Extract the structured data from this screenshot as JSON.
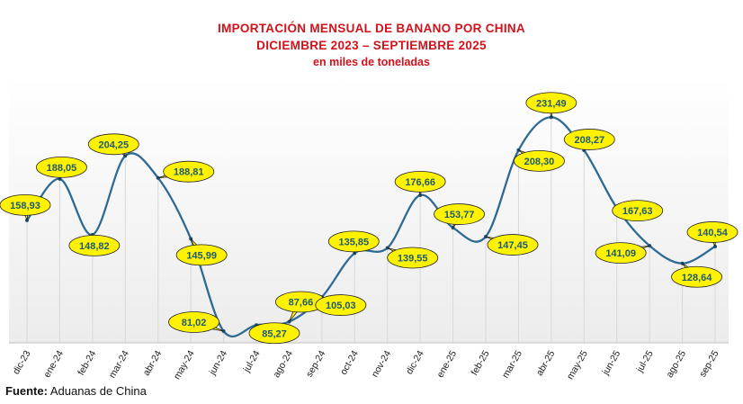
{
  "chart_data": {
    "type": "line",
    "title": "IMPORTACIÓN MENSUAL DE BANANO POR CHINA",
    "subtitle": "DICIEMBRE 2023 – SEPTIEMBRE 2025",
    "unit_note": "en miles de toneladas",
    "categories": [
      "dic-23",
      "ene-24",
      "feb-24",
      "mar-24",
      "abr-24",
      "may-24",
      "jun-24",
      "jul-24",
      "ago-24",
      "sep-24",
      "oct-24",
      "nov-24",
      "dic-24",
      "ene-25",
      "feb-25",
      "mar-25",
      "abr-25",
      "may-25",
      "jun-25",
      "jul-25",
      "ago-25",
      "sep-25"
    ],
    "values": [
      158.93,
      188.05,
      148.82,
      204.25,
      188.81,
      145.99,
      81.02,
      85.27,
      87.66,
      105.03,
      135.85,
      139.55,
      176.66,
      153.77,
      147.45,
      208.3,
      231.49,
      208.27,
      167.63,
      141.09,
      128.64,
      140.54
    ],
    "data_labels": [
      "158,93",
      "188,05",
      "148,82",
      "204,25",
      "188,81",
      "145,99",
      "81,02",
      "85,27",
      "87,66",
      "105,03",
      "135,85",
      "139,55",
      "176,66",
      "153,77",
      "147,45",
      "208,30",
      "231,49",
      "208,27",
      "167,63",
      "141,09",
      "128,64",
      "140,54"
    ],
    "xlabel": "",
    "ylabel": "",
    "y_axis_visible": false,
    "grid": "vertical",
    "smooth": true,
    "legend": "none",
    "colors": {
      "line": "#2e6a93",
      "callout_fill": "#fff200",
      "callout_text": "#1d5a73",
      "title": "#d0121b",
      "grid": "#d8d8d8"
    }
  },
  "footer": {
    "source_label": "Fuente:",
    "source_text": " Aduanas de China"
  }
}
